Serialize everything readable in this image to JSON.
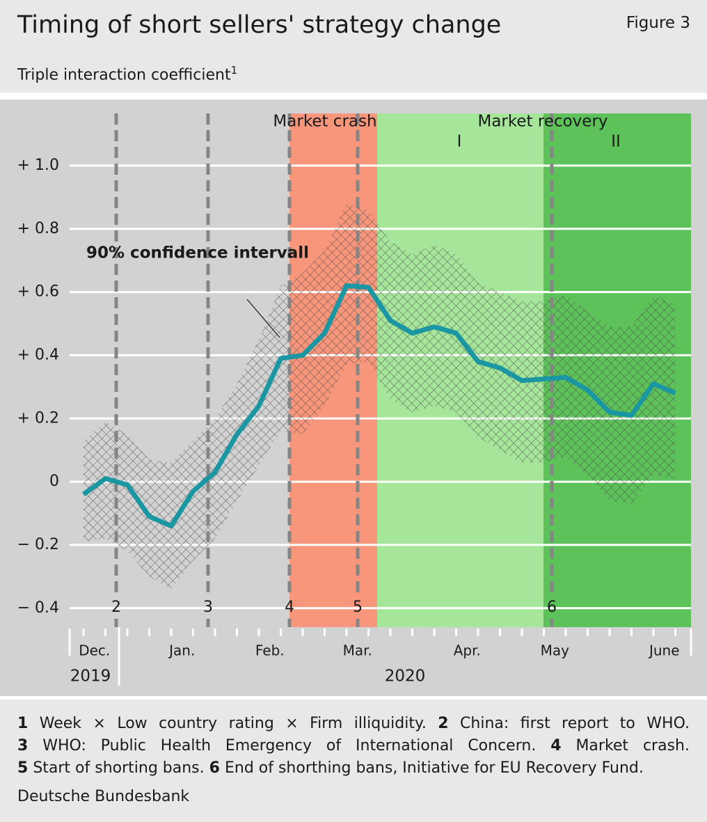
{
  "chart_data": {
    "type": "line",
    "title": "Timing of short sellers' strategy change",
    "figure_label": "Figure 3",
    "subtitle": "Triple interaction coefficient",
    "subtitle_note": "1",
    "categories": [
      "Dec.",
      null,
      null,
      null,
      "Jan.",
      null,
      null,
      null,
      "Feb.",
      null,
      null,
      null,
      "Mar.",
      null,
      null,
      null,
      null,
      "Apr.",
      null,
      null,
      null,
      "May",
      null,
      null,
      null,
      null,
      "June",
      null
    ],
    "values": [
      -0.04,
      0.01,
      -0.01,
      -0.11,
      -0.14,
      -0.03,
      0.03,
      0.15,
      0.24,
      0.39,
      0.4,
      0.47,
      0.62,
      0.615,
      0.51,
      0.47,
      0.49,
      0.47,
      0.38,
      0.36,
      0.32,
      0.325,
      0.33,
      0.29,
      0.22,
      0.21,
      0.31,
      0.28
    ],
    "color": "#1b97a3",
    "ci": {
      "label": "90% confidence intervall",
      "upper": [
        0.13,
        0.19,
        0.15,
        0.07,
        0.06,
        0.13,
        0.2,
        0.31,
        0.45,
        0.62,
        0.66,
        0.73,
        0.88,
        0.86,
        0.76,
        0.72,
        0.75,
        0.72,
        0.63,
        0.6,
        0.57,
        0.57,
        0.59,
        0.54,
        0.49,
        0.49,
        0.59,
        0.56
      ],
      "lower": [
        -0.19,
        -0.18,
        -0.22,
        -0.3,
        -0.34,
        -0.25,
        -0.18,
        -0.06,
        0.05,
        0.16,
        0.15,
        0.24,
        0.37,
        0.38,
        0.26,
        0.22,
        0.24,
        0.22,
        0.14,
        0.1,
        0.06,
        0.06,
        0.08,
        0.02,
        -0.06,
        -0.07,
        0.02,
        0.01
      ]
    },
    "ylim": [
      -0.46,
      1.165
    ],
    "yticks": [
      {
        "value": 1.0,
        "label": "+ 1.0"
      },
      {
        "value": 0.8,
        "label": "+ 0.8"
      },
      {
        "value": 0.6,
        "label": "+ 0.6"
      },
      {
        "value": 0.4,
        "label": "+ 0.4"
      },
      {
        "value": 0.2,
        "label": "+ 0.2"
      },
      0,
      {
        "value": -0.2,
        "label": "− 0.2"
      },
      {
        "value": -0.4,
        "label": "− 0.4"
      }
    ],
    "grid": true,
    "periods": [
      {
        "label": "Market crash",
        "color": "#f8967c"
      },
      {
        "label": "I",
        "color": "#a6e69b"
      },
      {
        "label": "II",
        "color": "#5ec25a"
      }
    ],
    "period_group_label": "Market recovery",
    "events": [
      "2",
      "3",
      "4",
      "5",
      "6"
    ],
    "years": [
      "2019",
      "2020"
    ]
  },
  "notes": [
    {
      "num": "1",
      "text": "Week × Low country rating × Firm illiquidity."
    },
    {
      "num": "2",
      "text": "China: first report to WHO."
    },
    {
      "num": "3",
      "text": "WHO: Public Health Emergency of International Concern."
    },
    {
      "num": "4",
      "text": "Market crash."
    },
    {
      "num": "5",
      "text": "Start of shorting bans."
    },
    {
      "num": "6",
      "text": "End of shorthing bans, Initiative for EU Recovery Fund."
    }
  ],
  "source": "Deutsche Bundesbank"
}
